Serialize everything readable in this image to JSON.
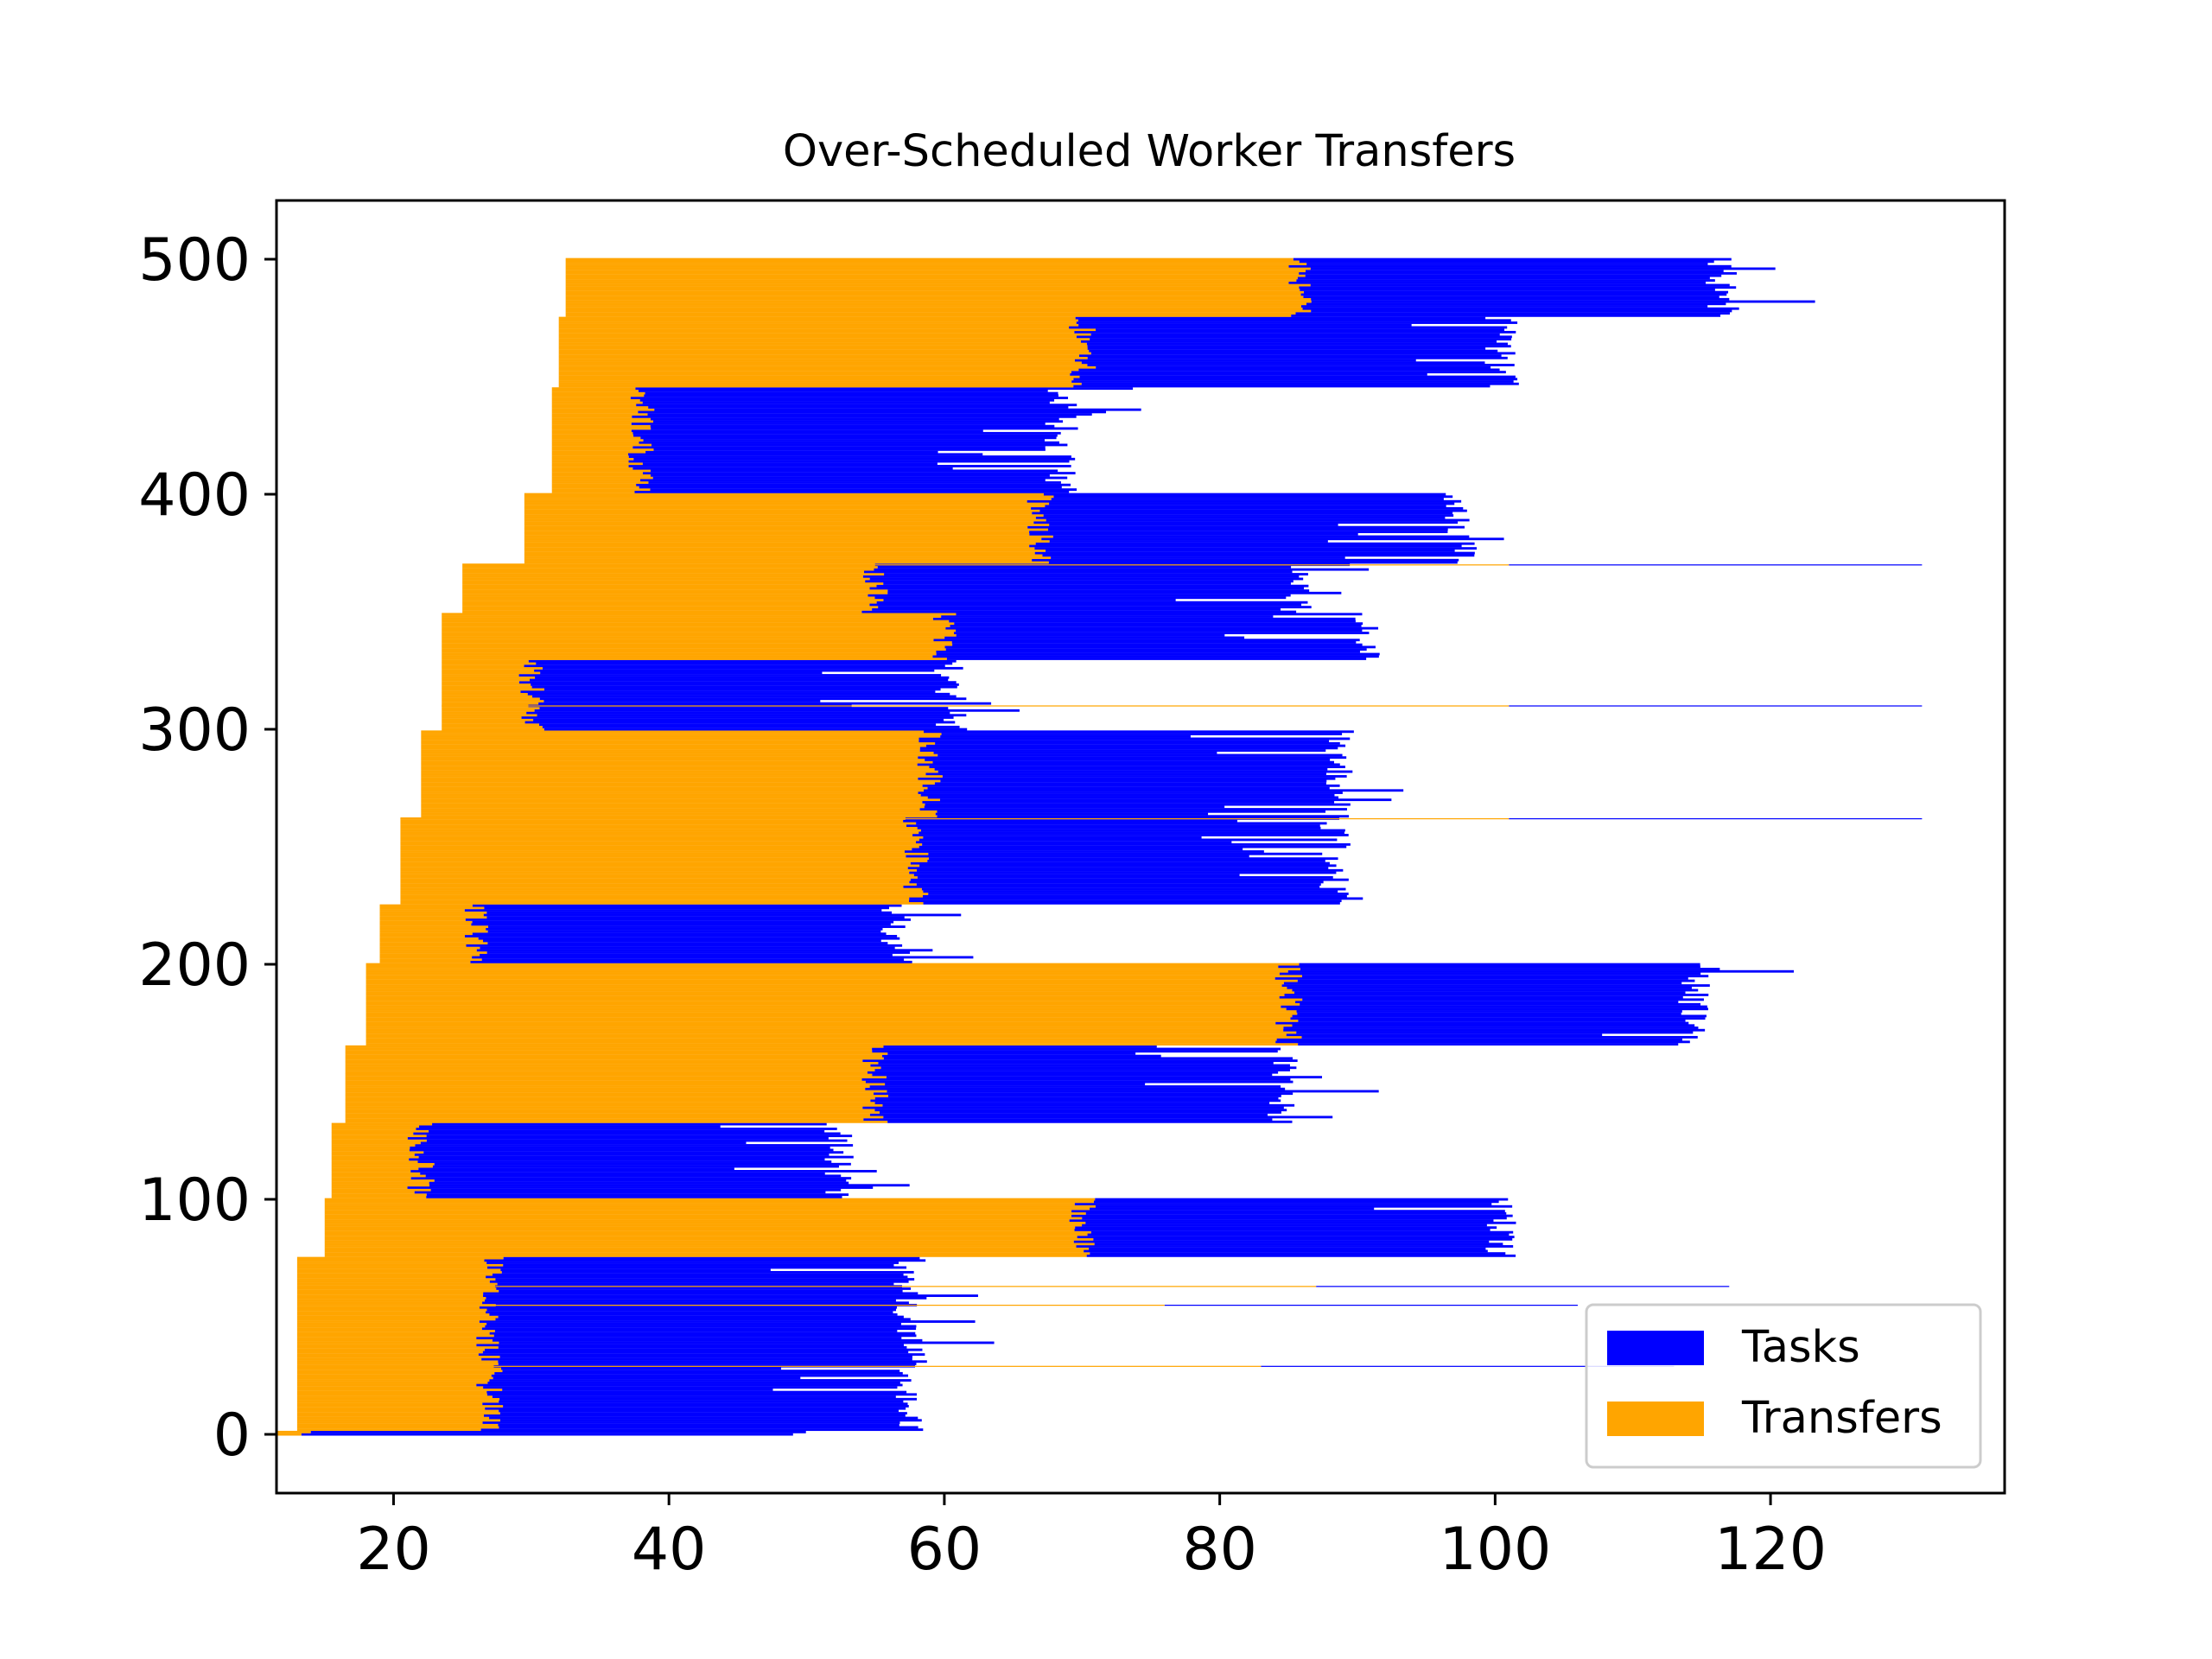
{
  "chart_data": {
    "type": "bar",
    "orientation": "horizontal",
    "layout": "gantt",
    "title": "Over-Scheduled Worker Transfers",
    "xlabel": "",
    "ylabel": "",
    "xlim": [
      11.5,
      137
    ],
    "ylim": [
      -25,
      525
    ],
    "xticks": [
      20,
      40,
      60,
      80,
      100,
      120
    ],
    "yticks": [
      0,
      100,
      200,
      300,
      400,
      500
    ],
    "grid": false,
    "legend_position": "lower-right",
    "series": [
      {
        "name": "Tasks",
        "color": "#0000ff"
      },
      {
        "name": "Transfers",
        "color": "#ffa500"
      }
    ],
    "groups": [
      {
        "y": [
          0,
          1
        ],
        "transfer_start": 11.5,
        "transfer_end": 13,
        "task_end": 49
      },
      {
        "y": [
          2,
          75
        ],
        "transfer_start": 13,
        "transfer_end": 27,
        "task_end": 57
      },
      {
        "y": [
          76,
          100
        ],
        "transfer_start": 15,
        "transfer_end": 70,
        "task_end": 100
      },
      {
        "y": [
          101,
          132
        ],
        "transfer_start": 15.5,
        "transfer_end": 22,
        "task_end": 52
      },
      {
        "y": [
          133,
          165
        ],
        "transfer_start": 16.5,
        "transfer_end": 55,
        "task_end": 84
      },
      {
        "y": [
          166,
          200
        ],
        "transfer_start": 18,
        "transfer_end": 85,
        "task_end": 114
      },
      {
        "y": [
          201,
          225
        ],
        "transfer_start": 19,
        "transfer_end": 26,
        "task_end": 56
      },
      {
        "y": [
          226,
          262
        ],
        "transfer_start": 20.5,
        "transfer_end": 58,
        "task_end": 88
      },
      {
        "y": [
          263,
          299
        ],
        "transfer_start": 22,
        "transfer_end": 59,
        "task_end": 88
      },
      {
        "y": [
          300,
          329
        ],
        "transfer_start": 23.5,
        "transfer_end": 30,
        "task_end": 60
      },
      {
        "y": [
          330,
          349
        ],
        "transfer_start": 23.5,
        "transfer_end": 60,
        "task_end": 90
      },
      {
        "y": [
          350,
          370
        ],
        "transfer_start": 25,
        "transfer_end": 55,
        "task_end": 85
      },
      {
        "y": [
          371,
          400
        ],
        "transfer_start": 29.5,
        "transfer_end": 67,
        "task_end": 97
      },
      {
        "y": [
          401,
          445
        ],
        "transfer_start": 31.5,
        "transfer_end": 38,
        "task_end": 68
      },
      {
        "y": [
          446,
          475
        ],
        "transfer_start": 32,
        "transfer_end": 70,
        "task_end": 100
      },
      {
        "y": [
          476,
          500
        ],
        "transfer_start": 32.5,
        "transfer_end": 86,
        "task_end": 116
      }
    ],
    "outliers": [
      {
        "y": 29,
        "transfer_start": 13.5,
        "transfer_end": 83,
        "task_end": 113
      },
      {
        "y": 55,
        "transfer_start": 13.5,
        "transfer_end": 76,
        "task_end": 106
      },
      {
        "y": 63,
        "transfer_start": 13.5,
        "transfer_end": 87,
        "task_end": 117
      },
      {
        "y": 262,
        "transfer_start": 20.5,
        "transfer_end": 101,
        "task_end": 131
      },
      {
        "y": 310,
        "transfer_start": 23.5,
        "transfer_end": 101,
        "task_end": 131
      },
      {
        "y": 370,
        "transfer_start": 29.5,
        "transfer_end": 101,
        "task_end": 131
      }
    ]
  }
}
